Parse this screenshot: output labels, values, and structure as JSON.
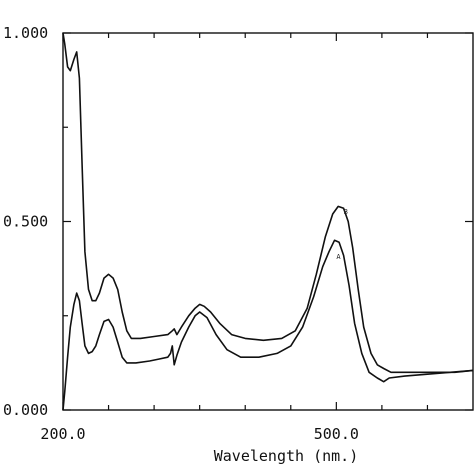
{
  "chart_data": {
    "type": "line",
    "xlabel": "Wavelength (nm.)",
    "ylabel": "",
    "xlim": [
      200,
      650
    ],
    "ylim": [
      0,
      1
    ],
    "x_tick_labels": [
      {
        "value": 200,
        "text": "200.0"
      },
      {
        "value": 500,
        "text": "500.0"
      }
    ],
    "x_minor_ticks": [
      250,
      300,
      350,
      400,
      450,
      550,
      600
    ],
    "y_tick_labels": [
      {
        "value": 0,
        "text": "0.000"
      },
      {
        "value": 0.5,
        "text": "0.500"
      },
      {
        "value": 1,
        "text": "1.000"
      }
    ],
    "grid": false,
    "legend": "none",
    "series": [
      {
        "name": "B",
        "label_point": [
          508,
          0.52
        ],
        "points": [
          [
            200,
            1.0
          ],
          [
            202,
            0.97
          ],
          [
            205,
            0.91
          ],
          [
            208,
            0.9
          ],
          [
            212,
            0.93
          ],
          [
            215,
            0.95
          ],
          [
            218,
            0.88
          ],
          [
            221,
            0.65
          ],
          [
            224,
            0.42
          ],
          [
            228,
            0.32
          ],
          [
            232,
            0.29
          ],
          [
            236,
            0.29
          ],
          [
            240,
            0.31
          ],
          [
            245,
            0.35
          ],
          [
            250,
            0.36
          ],
          [
            255,
            0.35
          ],
          [
            260,
            0.32
          ],
          [
            265,
            0.26
          ],
          [
            270,
            0.21
          ],
          [
            275,
            0.19
          ],
          [
            285,
            0.19
          ],
          [
            300,
            0.195
          ],
          [
            315,
            0.2
          ],
          [
            320,
            0.21
          ],
          [
            322,
            0.215
          ],
          [
            325,
            0.2
          ],
          [
            330,
            0.22
          ],
          [
            338,
            0.25
          ],
          [
            345,
            0.27
          ],
          [
            350,
            0.28
          ],
          [
            355,
            0.275
          ],
          [
            362,
            0.26
          ],
          [
            372,
            0.23
          ],
          [
            385,
            0.2
          ],
          [
            400,
            0.19
          ],
          [
            420,
            0.185
          ],
          [
            440,
            0.19
          ],
          [
            455,
            0.21
          ],
          [
            468,
            0.27
          ],
          [
            478,
            0.36
          ],
          [
            488,
            0.46
          ],
          [
            496,
            0.52
          ],
          [
            502,
            0.54
          ],
          [
            508,
            0.535
          ],
          [
            513,
            0.5
          ],
          [
            518,
            0.43
          ],
          [
            524,
            0.32
          ],
          [
            530,
            0.22
          ],
          [
            538,
            0.15
          ],
          [
            545,
            0.12
          ],
          [
            552,
            0.11
          ],
          [
            560,
            0.1
          ],
          [
            580,
            0.1
          ],
          [
            600,
            0.1
          ],
          [
            630,
            0.1
          ],
          [
            650,
            0.105
          ]
        ]
      },
      {
        "name": "A",
        "label_point": [
          500,
          0.4
        ],
        "points": [
          [
            200,
            0.0
          ],
          [
            202,
            0.05
          ],
          [
            205,
            0.14
          ],
          [
            208,
            0.22
          ],
          [
            212,
            0.28
          ],
          [
            215,
            0.31
          ],
          [
            218,
            0.29
          ],
          [
            221,
            0.23
          ],
          [
            224,
            0.17
          ],
          [
            228,
            0.15
          ],
          [
            232,
            0.155
          ],
          [
            236,
            0.17
          ],
          [
            240,
            0.2
          ],
          [
            245,
            0.235
          ],
          [
            250,
            0.24
          ],
          [
            255,
            0.22
          ],
          [
            260,
            0.18
          ],
          [
            265,
            0.14
          ],
          [
            270,
            0.125
          ],
          [
            280,
            0.125
          ],
          [
            295,
            0.13
          ],
          [
            305,
            0.135
          ],
          [
            315,
            0.14
          ],
          [
            318,
            0.15
          ],
          [
            320,
            0.17
          ],
          [
            322,
            0.12
          ],
          [
            325,
            0.145
          ],
          [
            330,
            0.18
          ],
          [
            338,
            0.22
          ],
          [
            345,
            0.25
          ],
          [
            350,
            0.26
          ],
          [
            358,
            0.245
          ],
          [
            368,
            0.2
          ],
          [
            380,
            0.16
          ],
          [
            395,
            0.14
          ],
          [
            415,
            0.14
          ],
          [
            435,
            0.15
          ],
          [
            450,
            0.17
          ],
          [
            463,
            0.22
          ],
          [
            475,
            0.3
          ],
          [
            485,
            0.38
          ],
          [
            492,
            0.42
          ],
          [
            498,
            0.45
          ],
          [
            503,
            0.445
          ],
          [
            508,
            0.41
          ],
          [
            514,
            0.33
          ],
          [
            520,
            0.23
          ],
          [
            528,
            0.15
          ],
          [
            536,
            0.1
          ],
          [
            545,
            0.085
          ],
          [
            552,
            0.075
          ],
          [
            558,
            0.085
          ],
          [
            575,
            0.09
          ],
          [
            600,
            0.095
          ],
          [
            625,
            0.1
          ],
          [
            650,
            0.105
          ]
        ]
      }
    ]
  }
}
